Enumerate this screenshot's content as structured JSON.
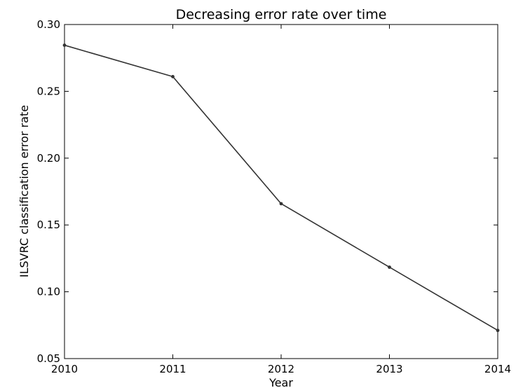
{
  "chart_data": {
    "type": "line",
    "title": "Decreasing error rate over time",
    "xlabel": "Year",
    "ylabel": "ILSVRC classification error rate",
    "x": [
      2010,
      2011,
      2012,
      2013,
      2014
    ],
    "series": [
      {
        "values": [
          0.2845,
          0.261,
          0.1659,
          0.1184,
          0.0711
        ],
        "color": "#333333"
      }
    ],
    "xlim": [
      2010,
      2014
    ],
    "ylim": [
      0.05,
      0.3
    ],
    "xticks": [
      "2010",
      "2011",
      "2012",
      "2013",
      "2014"
    ],
    "yticks": [
      "0.05",
      "0.10",
      "0.15",
      "0.20",
      "0.25",
      "0.30"
    ],
    "grid": false,
    "legend": "none",
    "colors": {
      "line": "#333333",
      "axes": "#000000",
      "background": "#ffffff"
    }
  }
}
